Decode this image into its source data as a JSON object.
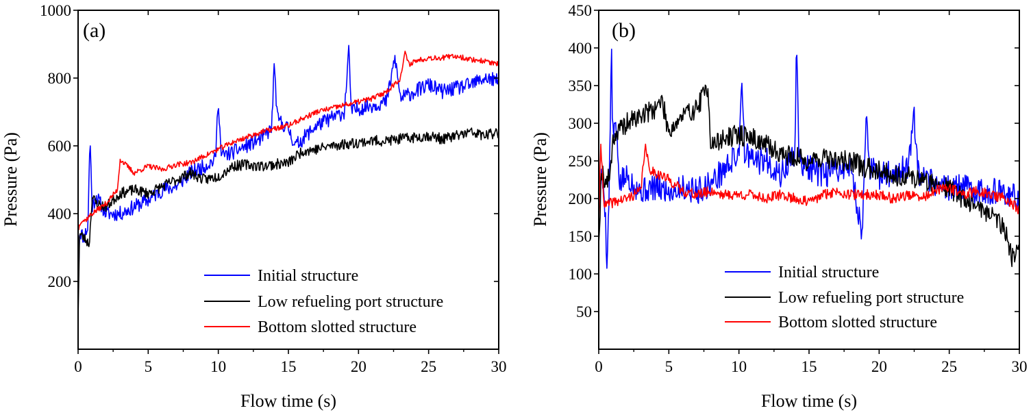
{
  "chart_data": [
    {
      "type": "line",
      "panel_label": "(a)",
      "xlabel": "Flow time (s)",
      "ylabel": "Pressure (Pa)",
      "xlim": [
        0,
        30
      ],
      "ylim": [
        0,
        1000
      ],
      "xticks": [
        "0",
        "5",
        "10",
        "15",
        "20",
        "25",
        "30"
      ],
      "yticks": [
        "200",
        "400",
        "600",
        "800",
        "1000"
      ],
      "ytick_values": [
        200,
        400,
        600,
        800,
        1000
      ],
      "legend_position": "bottom-right",
      "series": [
        {
          "name": "Initial structure",
          "color": "#0000ff",
          "noise": 22,
          "seed": 11,
          "x": [
            0,
            0.1,
            0.4,
            0.7,
            0.85,
            1.0,
            1.3,
            2,
            3,
            4,
            5,
            6,
            7,
            8,
            9,
            9.8,
            10.0,
            10.2,
            11,
            12,
            13,
            13.8,
            14.0,
            14.2,
            15,
            15.5,
            16,
            17,
            18,
            19,
            19.3,
            19.5,
            20,
            21,
            22,
            22.6,
            23,
            24,
            25,
            26,
            27,
            28,
            29,
            30
          ],
          "y": [
            150,
            350,
            330,
            360,
            630,
            420,
            450,
            400,
            400,
            420,
            440,
            470,
            480,
            520,
            540,
            560,
            745,
            570,
            580,
            600,
            620,
            650,
            845,
            680,
            650,
            600,
            620,
            660,
            680,
            700,
            885,
            700,
            710,
            720,
            730,
            860,
            740,
            760,
            780,
            760,
            770,
            780,
            800,
            790
          ]
        },
        {
          "name": "Low refueling port structure",
          "color": "#000000",
          "noise": 16,
          "seed": 23,
          "x": [
            0,
            0.1,
            0.4,
            0.8,
            1.0,
            1.3,
            2,
            3,
            4,
            5,
            6,
            7,
            8,
            9,
            10,
            11,
            12,
            13,
            14,
            15,
            16,
            17,
            18,
            19,
            20,
            21,
            22,
            23,
            24,
            25,
            26,
            27,
            28,
            29,
            30
          ],
          "y": [
            90,
            340,
            330,
            310,
            450,
            430,
            420,
            460,
            470,
            460,
            480,
            500,
            520,
            500,
            510,
            540,
            545,
            540,
            545,
            550,
            585,
            590,
            600,
            605,
            610,
            615,
            615,
            620,
            625,
            630,
            620,
            630,
            640,
            630,
            640
          ]
        },
        {
          "name": "Bottom slotted structure",
          "color": "#ff0000",
          "noise": 8,
          "seed": 37,
          "x": [
            0,
            0.2,
            0.5,
            1,
            2,
            2.8,
            3,
            4,
            5,
            6,
            7,
            8,
            9,
            10,
            11,
            12,
            13,
            14,
            15,
            16,
            17,
            18,
            19,
            20,
            21,
            22,
            23,
            23.3,
            23.6,
            24,
            25,
            26,
            27,
            28,
            29,
            30
          ],
          "y": [
            350,
            380,
            380,
            400,
            430,
            470,
            560,
            520,
            540,
            530,
            545,
            550,
            570,
            590,
            610,
            625,
            640,
            650,
            660,
            680,
            700,
            710,
            720,
            730,
            740,
            760,
            800,
            875,
            840,
            850,
            860,
            860,
            865,
            855,
            850,
            840
          ]
        }
      ]
    },
    {
      "type": "line",
      "panel_label": "(b)",
      "xlabel": "Flow time (s)",
      "ylabel": "Pressure (Pa)",
      "xlim": [
        0,
        30
      ],
      "ylim": [
        0,
        450
      ],
      "xticks": [
        "0",
        "5",
        "10",
        "15",
        "20",
        "25",
        "30"
      ],
      "yticks": [
        "50",
        "100",
        "150",
        "200",
        "250",
        "300",
        "350",
        "400",
        "450"
      ],
      "ytick_values": [
        50,
        100,
        150,
        200,
        250,
        300,
        350,
        400,
        450
      ],
      "legend_position": "bottom-right",
      "series": [
        {
          "name": "Initial structure",
          "color": "#0000ff",
          "noise": 18,
          "seed": 5,
          "x": [
            0,
            0.15,
            0.4,
            0.6,
            0.8,
            0.9,
            1.0,
            1.2,
            1.5,
            2,
            3,
            4,
            5,
            6,
            7,
            8,
            9,
            10.0,
            10.2,
            10.4,
            11,
            12,
            13,
            14.0,
            14.1,
            14.3,
            15,
            16,
            17,
            18,
            18.8,
            19.1,
            19.3,
            20,
            21,
            22,
            22.5,
            22.8,
            23,
            24,
            25,
            26,
            27,
            28,
            29,
            30
          ],
          "y": [
            190,
            230,
            210,
            110,
            260,
            410,
            280,
            300,
            220,
            230,
            210,
            215,
            210,
            215,
            210,
            220,
            240,
            260,
            370,
            260,
            250,
            250,
            230,
            260,
            405,
            250,
            240,
            230,
            240,
            240,
            150,
            330,
            240,
            230,
            235,
            240,
            305,
            230,
            225,
            220,
            215,
            215,
            210,
            210,
            205,
            200
          ]
        },
        {
          "name": "Low refueling port structure",
          "color": "#000000",
          "noise": 14,
          "seed": 19,
          "x": [
            0,
            0.2,
            0.5,
            0.8,
            1.0,
            2,
            3,
            4,
            4.5,
            5,
            6,
            7,
            7.8,
            8,
            9,
            10,
            11,
            12,
            13,
            14,
            15,
            16,
            17,
            18,
            19,
            20,
            21,
            22,
            23,
            24,
            25,
            26,
            27,
            28,
            29,
            29.5,
            30
          ],
          "y": [
            140,
            240,
            220,
            230,
            280,
            300,
            310,
            320,
            330,
            290,
            310,
            320,
            350,
            270,
            280,
            285,
            280,
            270,
            260,
            255,
            250,
            255,
            250,
            250,
            240,
            240,
            230,
            230,
            225,
            220,
            215,
            200,
            190,
            180,
            160,
            120,
            140
          ]
        },
        {
          "name": "Bottom slotted structure",
          "color": "#ff0000",
          "noise": 7,
          "seed": 41,
          "x": [
            0,
            0.15,
            0.4,
            1,
            2,
            3,
            3.3,
            3.6,
            4,
            5,
            6,
            7,
            8,
            9,
            10,
            11,
            12,
            13,
            14,
            15,
            16,
            17,
            18,
            19,
            20,
            21,
            22,
            23,
            24,
            25,
            26,
            27,
            28,
            29,
            30
          ],
          "y": [
            170,
            270,
            190,
            195,
            200,
            210,
            270,
            240,
            235,
            225,
            210,
            205,
            210,
            205,
            205,
            205,
            200,
            205,
            200,
            195,
            205,
            210,
            205,
            205,
            205,
            200,
            205,
            200,
            210,
            215,
            205,
            210,
            205,
            200,
            185
          ]
        }
      ]
    }
  ]
}
